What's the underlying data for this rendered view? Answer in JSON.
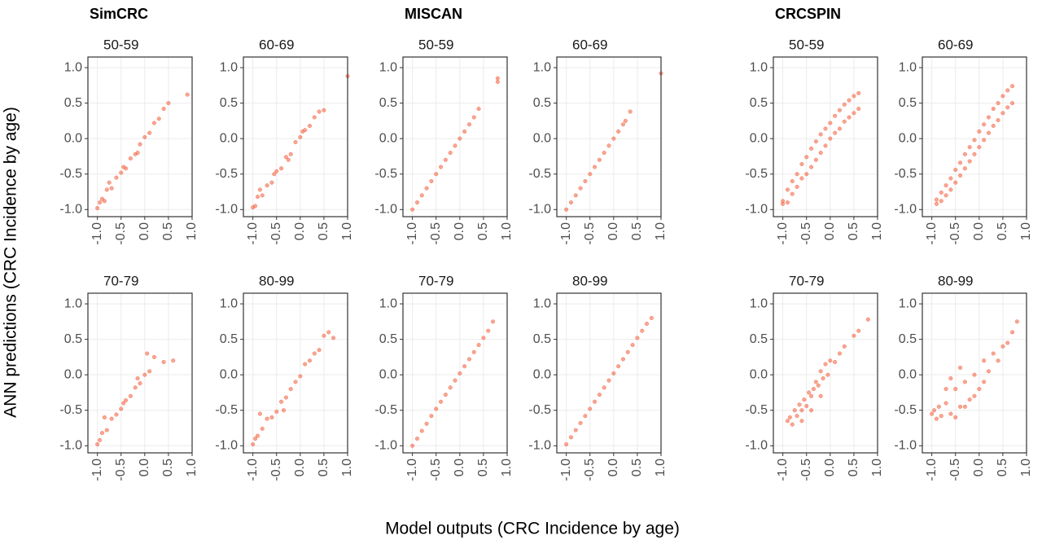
{
  "models": [
    "SimCRC",
    "MISCAN",
    "CRCSPIN"
  ],
  "xlabel": "Model outputs (CRC Incidence by age)",
  "ylabel": "ANN predictions (CRC Incidence by age)",
  "chart_data": [
    {
      "type": "scatter",
      "title": "50-59",
      "color": "#f4694a",
      "grid": true,
      "xlim": [
        -1.2,
        1.0
      ],
      "ylim": [
        -1.1,
        1.15
      ],
      "xticks": [
        {
          "value": -1,
          "label": "-1.0"
        },
        -0.5,
        {
          "value": 0,
          "label": "0.0"
        },
        0.5,
        {
          "value": 1,
          "label": "1.0"
        }
      ],
      "yticks": [
        {
          "value": -1,
          "label": "-1.0"
        },
        -0.5,
        {
          "value": 0,
          "label": "0.0"
        },
        0.5,
        {
          "value": 1,
          "label": "1.0"
        }
      ],
      "x": [
        -1,
        -0.95,
        -0.9,
        -0.85,
        -0.8,
        -0.7,
        -0.6,
        -0.5,
        -0.4,
        -0.3,
        -0.2,
        -0.1,
        0,
        0.1,
        0.2,
        0.3,
        0.4,
        0.5,
        -0.75,
        -0.45,
        -0.15,
        0.9
      ],
      "values": [
        -0.98,
        -0.9,
        -0.85,
        -0.88,
        -0.72,
        -0.7,
        -0.55,
        -0.48,
        -0.42,
        -0.28,
        -0.22,
        -0.08,
        0.02,
        0.08,
        0.22,
        0.28,
        0.42,
        0.5,
        -0.62,
        -0.4,
        -0.2,
        0.62
      ]
    },
    {
      "type": "scatter",
      "title": "60-69",
      "color": "#f4694a",
      "grid": true,
      "xlim": [
        -1.2,
        1.0
      ],
      "ylim": [
        -1.1,
        1.15
      ],
      "xticks": [
        {
          "value": -1,
          "label": "-1.0"
        },
        -0.5,
        {
          "value": 0,
          "label": "0.0"
        },
        0.5,
        {
          "value": 1,
          "label": "1.0"
        }
      ],
      "yticks": [
        {
          "value": -1,
          "label": "-1.0"
        },
        -0.5,
        {
          "value": 0,
          "label": "0.0"
        },
        0.5,
        {
          "value": 1,
          "label": "1.0"
        }
      ],
      "x": [
        -1,
        -0.95,
        -0.9,
        -0.8,
        -0.7,
        -0.6,
        -0.5,
        -0.4,
        -0.3,
        -0.2,
        -0.1,
        0,
        0.1,
        0.2,
        0.3,
        0.4,
        0.5,
        -0.85,
        -0.55,
        -0.25,
        0.05,
        1.0
      ],
      "values": [
        -0.97,
        -0.95,
        -0.82,
        -0.8,
        -0.66,
        -0.62,
        -0.46,
        -0.42,
        -0.26,
        -0.22,
        -0.05,
        0.02,
        0.12,
        0.18,
        0.3,
        0.38,
        0.4,
        -0.72,
        -0.5,
        -0.3,
        0.1,
        0.88
      ]
    },
    {
      "type": "scatter",
      "title": "70-79",
      "color": "#f4694a",
      "grid": true,
      "xlim": [
        -1.2,
        1.0
      ],
      "ylim": [
        -1.1,
        1.15
      ],
      "xticks": [
        {
          "value": -1,
          "label": "-1.0"
        },
        -0.5,
        {
          "value": 0,
          "label": "0.0"
        },
        0.5,
        {
          "value": 1,
          "label": "1.0"
        }
      ],
      "yticks": [
        {
          "value": -1,
          "label": "-1.0"
        },
        -0.5,
        {
          "value": 0,
          "label": "0.0"
        },
        0.5,
        {
          "value": 1,
          "label": "1.0"
        }
      ],
      "x": [
        -1,
        -0.95,
        -0.9,
        -0.8,
        -0.7,
        -0.6,
        -0.5,
        -0.4,
        -0.3,
        -0.2,
        -0.1,
        0,
        0.1,
        0.2,
        0.4,
        0.6,
        -0.85,
        -0.45,
        -0.15,
        0.05
      ],
      "values": [
        -0.98,
        -0.92,
        -0.82,
        -0.78,
        -0.62,
        -0.56,
        -0.48,
        -0.36,
        -0.3,
        -0.18,
        -0.12,
        0,
        0.05,
        0.25,
        0.18,
        0.2,
        -0.6,
        -0.4,
        -0.05,
        0.3
      ]
    },
    {
      "type": "scatter",
      "title": "80-99",
      "color": "#f4694a",
      "grid": true,
      "xlim": [
        -1.2,
        1.0
      ],
      "ylim": [
        -1.1,
        1.15
      ],
      "xticks": [
        {
          "value": -1,
          "label": "-1.0"
        },
        -0.5,
        {
          "value": 0,
          "label": "0.0"
        },
        0.5,
        {
          "value": 1,
          "label": "1.0"
        }
      ],
      "yticks": [
        {
          "value": -1,
          "label": "-1.0"
        },
        -0.5,
        {
          "value": 0,
          "label": "0.0"
        },
        0.5,
        {
          "value": 1,
          "label": "1.0"
        }
      ],
      "x": [
        -1,
        -0.95,
        -0.9,
        -0.8,
        -0.7,
        -0.6,
        -0.5,
        -0.4,
        -0.3,
        -0.2,
        -0.1,
        0,
        0.1,
        0.2,
        0.3,
        0.4,
        0.5,
        0.6,
        -0.85,
        -0.35,
        0.7
      ],
      "values": [
        -0.98,
        -0.9,
        -0.86,
        -0.76,
        -0.62,
        -0.6,
        -0.52,
        -0.38,
        -0.32,
        -0.2,
        -0.1,
        -0.02,
        0.15,
        0.2,
        0.3,
        0.35,
        0.55,
        0.6,
        -0.55,
        -0.5,
        0.52
      ]
    },
    {
      "type": "scatter",
      "title": "50-59",
      "color": "#f4694a",
      "grid": true,
      "xlim": [
        -1.2,
        1.0
      ],
      "ylim": [
        -1.1,
        1.15
      ],
      "xticks": [
        {
          "value": -1,
          "label": "-1.0"
        },
        -0.5,
        {
          "value": 0,
          "label": "0.0"
        },
        0.5,
        {
          "value": 1,
          "label": "1.0"
        }
      ],
      "yticks": [
        {
          "value": -1,
          "label": "-1.0"
        },
        -0.5,
        {
          "value": 0,
          "label": "0.0"
        },
        0.5,
        {
          "value": 1,
          "label": "1.0"
        }
      ],
      "x": [
        -1,
        -0.9,
        -0.8,
        -0.7,
        -0.6,
        -0.5,
        -0.4,
        -0.3,
        -0.2,
        -0.1,
        0,
        0.1,
        0.2,
        0.3,
        0.4,
        0.8,
        0.8
      ],
      "values": [
        -1,
        -0.9,
        -0.8,
        -0.7,
        -0.6,
        -0.5,
        -0.4,
        -0.3,
        -0.2,
        -0.1,
        0,
        0.1,
        0.2,
        0.3,
        0.42,
        0.8,
        0.85
      ]
    },
    {
      "type": "scatter",
      "title": "60-69",
      "color": "#f4694a",
      "grid": true,
      "xlim": [
        -1.2,
        1.0
      ],
      "ylim": [
        -1.1,
        1.15
      ],
      "xticks": [
        {
          "value": -1,
          "label": "-1.0"
        },
        -0.5,
        {
          "value": 0,
          "label": "0.0"
        },
        0.5,
        {
          "value": 1,
          "label": "1.0"
        }
      ],
      "yticks": [
        {
          "value": -1,
          "label": "-1.0"
        },
        -0.5,
        {
          "value": 0,
          "label": "0.0"
        },
        0.5,
        {
          "value": 1,
          "label": "1.0"
        }
      ],
      "x": [
        -1,
        -0.9,
        -0.8,
        -0.7,
        -0.6,
        -0.5,
        -0.4,
        -0.3,
        -0.2,
        -0.1,
        0,
        0.1,
        0.2,
        0.25,
        0.35,
        1.0
      ],
      "values": [
        -1,
        -0.9,
        -0.8,
        -0.7,
        -0.6,
        -0.5,
        -0.4,
        -0.3,
        -0.2,
        -0.1,
        0,
        0.1,
        0.2,
        0.25,
        0.38,
        0.92
      ]
    },
    {
      "type": "scatter",
      "title": "70-79",
      "color": "#f4694a",
      "grid": true,
      "xlim": [
        -1.2,
        1.0
      ],
      "ylim": [
        -1.1,
        1.15
      ],
      "xticks": [
        {
          "value": -1,
          "label": "-1.0"
        },
        -0.5,
        {
          "value": 0,
          "label": "0.0"
        },
        0.5,
        {
          "value": 1,
          "label": "1.0"
        }
      ],
      "yticks": [
        {
          "value": -1,
          "label": "-1.0"
        },
        -0.5,
        {
          "value": 0,
          "label": "0.0"
        },
        0.5,
        {
          "value": 1,
          "label": "1.0"
        }
      ],
      "x": [
        -1,
        -0.9,
        -0.8,
        -0.7,
        -0.6,
        -0.5,
        -0.4,
        -0.3,
        -0.2,
        -0.1,
        0,
        0.1,
        0.2,
        0.3,
        0.4,
        0.5,
        0.6,
        0.7
      ],
      "values": [
        -1,
        -0.9,
        -0.79,
        -0.69,
        -0.58,
        -0.48,
        -0.38,
        -0.28,
        -0.18,
        -0.08,
        0.02,
        0.12,
        0.22,
        0.32,
        0.42,
        0.52,
        0.62,
        0.75
      ]
    },
    {
      "type": "scatter",
      "title": "80-99",
      "color": "#f4694a",
      "grid": true,
      "xlim": [
        -1.2,
        1.0
      ],
      "ylim": [
        -1.1,
        1.15
      ],
      "xticks": [
        {
          "value": -1,
          "label": "-1.0"
        },
        -0.5,
        {
          "value": 0,
          "label": "0.0"
        },
        0.5,
        {
          "value": 1,
          "label": "1.0"
        }
      ],
      "yticks": [
        {
          "value": -1,
          "label": "-1.0"
        },
        -0.5,
        {
          "value": 0,
          "label": "0.0"
        },
        0.5,
        {
          "value": 1,
          "label": "1.0"
        }
      ],
      "x": [
        -1,
        -0.9,
        -0.8,
        -0.7,
        -0.6,
        -0.5,
        -0.4,
        -0.3,
        -0.2,
        -0.1,
        0,
        0.1,
        0.2,
        0.3,
        0.4,
        0.5,
        0.6,
        0.7,
        0.8
      ],
      "values": [
        -0.98,
        -0.88,
        -0.78,
        -0.68,
        -0.58,
        -0.48,
        -0.38,
        -0.28,
        -0.18,
        -0.08,
        0.02,
        0.12,
        0.22,
        0.32,
        0.42,
        0.52,
        0.62,
        0.72,
        0.8
      ]
    },
    {
      "type": "scatter",
      "title": "50-59",
      "color": "#f4694a",
      "grid": true,
      "xlim": [
        -1.2,
        1.0
      ],
      "ylim": [
        -1.1,
        1.15
      ],
      "xticks": [
        {
          "value": -1,
          "label": "-1.0"
        },
        -0.5,
        {
          "value": 0,
          "label": "0.0"
        },
        0.5,
        {
          "value": 1,
          "label": "1.0"
        }
      ],
      "yticks": [
        {
          "value": -1,
          "label": "-1.0"
        },
        -0.5,
        {
          "value": 0,
          "label": "0.0"
        },
        0.5,
        {
          "value": 1,
          "label": "1.0"
        }
      ],
      "x": [
        -1,
        -1,
        -0.9,
        -0.9,
        -0.8,
        -0.8,
        -0.7,
        -0.7,
        -0.6,
        -0.6,
        -0.5,
        -0.5,
        -0.4,
        -0.4,
        -0.3,
        -0.3,
        -0.2,
        -0.2,
        -0.1,
        -0.1,
        0,
        0,
        0.1,
        0.1,
        0.2,
        0.2,
        0.3,
        0.3,
        0.4,
        0.4,
        0.5,
        0.5,
        0.6,
        0.6
      ],
      "values": [
        -0.92,
        -0.88,
        -0.9,
        -0.72,
        -0.78,
        -0.6,
        -0.68,
        -0.5,
        -0.56,
        -0.36,
        -0.5,
        -0.26,
        -0.4,
        -0.14,
        -0.3,
        -0.04,
        -0.2,
        0.06,
        -0.1,
        0.14,
        0.0,
        0.22,
        0.08,
        0.32,
        0.14,
        0.4,
        0.24,
        0.48,
        0.3,
        0.54,
        0.36,
        0.6,
        0.42,
        0.64
      ]
    },
    {
      "type": "scatter",
      "title": "60-69",
      "color": "#f4694a",
      "grid": true,
      "xlim": [
        -1.2,
        1.0
      ],
      "ylim": [
        -1.1,
        1.15
      ],
      "xticks": [
        {
          "value": -1,
          "label": "-1.0"
        },
        -0.5,
        {
          "value": 0,
          "label": "0.0"
        },
        0.5,
        {
          "value": 1,
          "label": "1.0"
        }
      ],
      "yticks": [
        {
          "value": -1,
          "label": "-1.0"
        },
        -0.5,
        {
          "value": 0,
          "label": "0.0"
        },
        0.5,
        {
          "value": 1,
          "label": "1.0"
        }
      ],
      "x": [
        -0.9,
        -0.9,
        -0.8,
        -0.8,
        -0.7,
        -0.7,
        -0.6,
        -0.6,
        -0.5,
        -0.5,
        -0.4,
        -0.4,
        -0.3,
        -0.3,
        -0.2,
        -0.2,
        -0.1,
        -0.1,
        0,
        0,
        0.1,
        0.1,
        0.2,
        0.2,
        0.3,
        0.3,
        0.4,
        0.4,
        0.5,
        0.5,
        0.6,
        0.6,
        0.7,
        0.7
      ],
      "values": [
        -0.92,
        -0.86,
        -0.88,
        -0.76,
        -0.8,
        -0.66,
        -0.72,
        -0.56,
        -0.62,
        -0.44,
        -0.52,
        -0.34,
        -0.42,
        -0.22,
        -0.32,
        -0.12,
        -0.22,
        -0.02,
        -0.12,
        0.1,
        -0.02,
        0.2,
        0.08,
        0.3,
        0.18,
        0.42,
        0.26,
        0.5,
        0.36,
        0.6,
        0.44,
        0.68,
        0.5,
        0.74
      ]
    },
    {
      "type": "scatter",
      "title": "70-79",
      "color": "#f4694a",
      "grid": true,
      "xlim": [
        -1.2,
        1.0
      ],
      "ylim": [
        -1.1,
        1.15
      ],
      "xticks": [
        {
          "value": -1,
          "label": "-1.0"
        },
        -0.5,
        {
          "value": 0,
          "label": "0.0"
        },
        0.5,
        {
          "value": 1,
          "label": "1.0"
        }
      ],
      "yticks": [
        {
          "value": -1,
          "label": "-1.0"
        },
        -0.5,
        {
          "value": 0,
          "label": "0.0"
        },
        0.5,
        {
          "value": 1,
          "label": "1.0"
        }
      ],
      "x": [
        -0.9,
        -0.85,
        -0.8,
        -0.75,
        -0.7,
        -0.65,
        -0.6,
        -0.55,
        -0.5,
        -0.45,
        -0.4,
        -0.35,
        -0.3,
        -0.25,
        -0.2,
        -0.15,
        -0.1,
        -0.05,
        0,
        0.1,
        0.2,
        0.3,
        0.5,
        0.6,
        0.8,
        -0.6,
        -0.4,
        -0.2
      ],
      "values": [
        -0.65,
        -0.6,
        -0.7,
        -0.5,
        -0.58,
        -0.42,
        -0.5,
        -0.35,
        -0.44,
        -0.25,
        -0.3,
        -0.2,
        -0.1,
        -0.15,
        0.05,
        -0.05,
        0.15,
        0.0,
        0.2,
        0.18,
        0.3,
        0.4,
        0.55,
        0.62,
        0.78,
        -0.65,
        -0.5,
        -0.3
      ]
    },
    {
      "type": "scatter",
      "title": "80-99",
      "color": "#f4694a",
      "grid": true,
      "xlim": [
        -1.2,
        1.0
      ],
      "ylim": [
        -1.1,
        1.15
      ],
      "xticks": [
        {
          "value": -1,
          "label": "-1.0"
        },
        -0.5,
        {
          "value": 0,
          "label": "0.0"
        },
        0.5,
        {
          "value": 1,
          "label": "1.0"
        }
      ],
      "yticks": [
        {
          "value": -1,
          "label": "-1.0"
        },
        -0.5,
        {
          "value": 0,
          "label": "0.0"
        },
        0.5,
        {
          "value": 1,
          "label": "1.0"
        }
      ],
      "x": [
        -1,
        -0.95,
        -0.9,
        -0.85,
        -0.8,
        -0.7,
        -0.6,
        -0.5,
        -0.4,
        -0.3,
        -0.2,
        -0.1,
        0,
        0.1,
        0.2,
        0.3,
        0.4,
        0.5,
        0.6,
        0.7,
        0.8,
        -0.7,
        -0.5,
        -0.3,
        -0.1,
        0.1,
        -0.6,
        -0.4
      ],
      "values": [
        -0.55,
        -0.5,
        -0.62,
        -0.45,
        -0.58,
        -0.4,
        -0.55,
        -0.2,
        -0.45,
        -0.1,
        -0.35,
        0.0,
        -0.2,
        0.2,
        0.05,
        0.3,
        0.2,
        0.4,
        0.45,
        0.6,
        0.75,
        -0.2,
        -0.6,
        -0.45,
        -0.3,
        -0.1,
        -0.05,
        0.1
      ]
    }
  ]
}
